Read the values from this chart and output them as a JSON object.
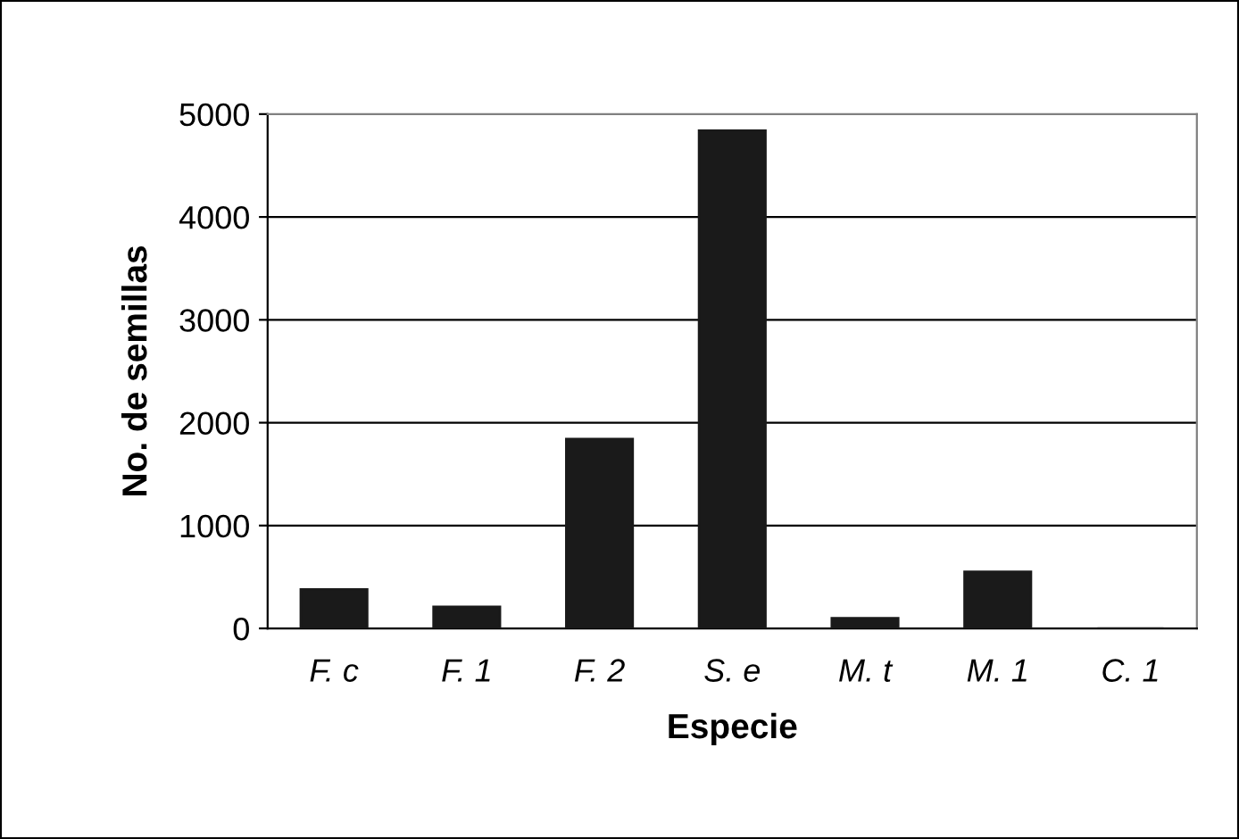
{
  "chart_data": {
    "type": "bar",
    "xlabel": "Especie",
    "ylabel": "No. de semillas",
    "categories": [
      "F. c",
      "F. 1",
      "F. 2",
      "S. e",
      "M. t",
      "M. 1",
      "C. 1"
    ],
    "values": [
      380,
      210,
      1840,
      4840,
      100,
      550,
      0
    ],
    "color": "#1a1a1a",
    "ylim": [
      0,
      5000
    ],
    "yticks": [
      0,
      1000,
      2000,
      3000,
      4000,
      5000
    ],
    "grid": "y"
  }
}
